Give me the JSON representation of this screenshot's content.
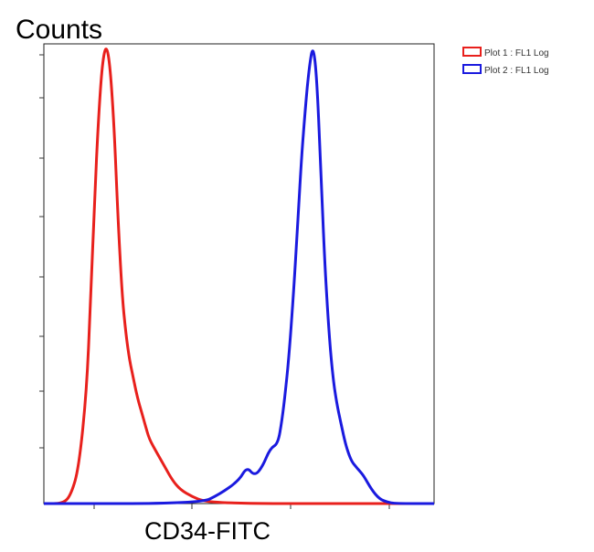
{
  "chart_data": {
    "type": "line",
    "title": "",
    "xlabel": "CD34-FITC",
    "ylabel": "Counts",
    "x_scale": "log",
    "xlim": [
      0,
      100
    ],
    "ylim": [
      0,
      100
    ],
    "grid": false,
    "legend_position": "top-right",
    "series": [
      {
        "name": "Plot 1 : FL1 Log",
        "color": "#e8201c",
        "x": [
          0,
          5,
          7,
          9,
          11,
          12,
          13,
          14,
          15,
          16,
          17,
          18,
          19,
          20,
          21,
          22,
          23,
          24,
          25,
          26,
          27,
          29,
          31,
          33,
          35,
          38,
          41,
          46,
          55,
          70,
          100
        ],
        "y": [
          0,
          0,
          2,
          8,
          25,
          45,
          66,
          84,
          96,
          100,
          95,
          82,
          62,
          46,
          37,
          31,
          27,
          23,
          20,
          17,
          14,
          11,
          8,
          5,
          3,
          1.5,
          0.5,
          0.2,
          0,
          0,
          0
        ]
      },
      {
        "name": "Plot 2 : FL1 Log",
        "color": "#1a1adf",
        "x": [
          0,
          40,
          45,
          50,
          52,
          54,
          56,
          58,
          60,
          61,
          62,
          63,
          64,
          65,
          66,
          67,
          68,
          69,
          70,
          71,
          72,
          73,
          74,
          75,
          76,
          77,
          78,
          79,
          80,
          81,
          82,
          84,
          86,
          88,
          90,
          100
        ],
        "y": [
          0,
          0,
          2,
          5,
          8,
          6,
          8,
          12,
          13,
          18,
          25,
          34,
          46,
          60,
          75,
          86,
          95,
          100,
          92,
          72,
          52,
          38,
          28,
          22,
          18,
          14,
          11,
          9,
          8,
          7,
          6,
          3,
          1,
          0.3,
          0,
          0
        ]
      }
    ]
  }
}
